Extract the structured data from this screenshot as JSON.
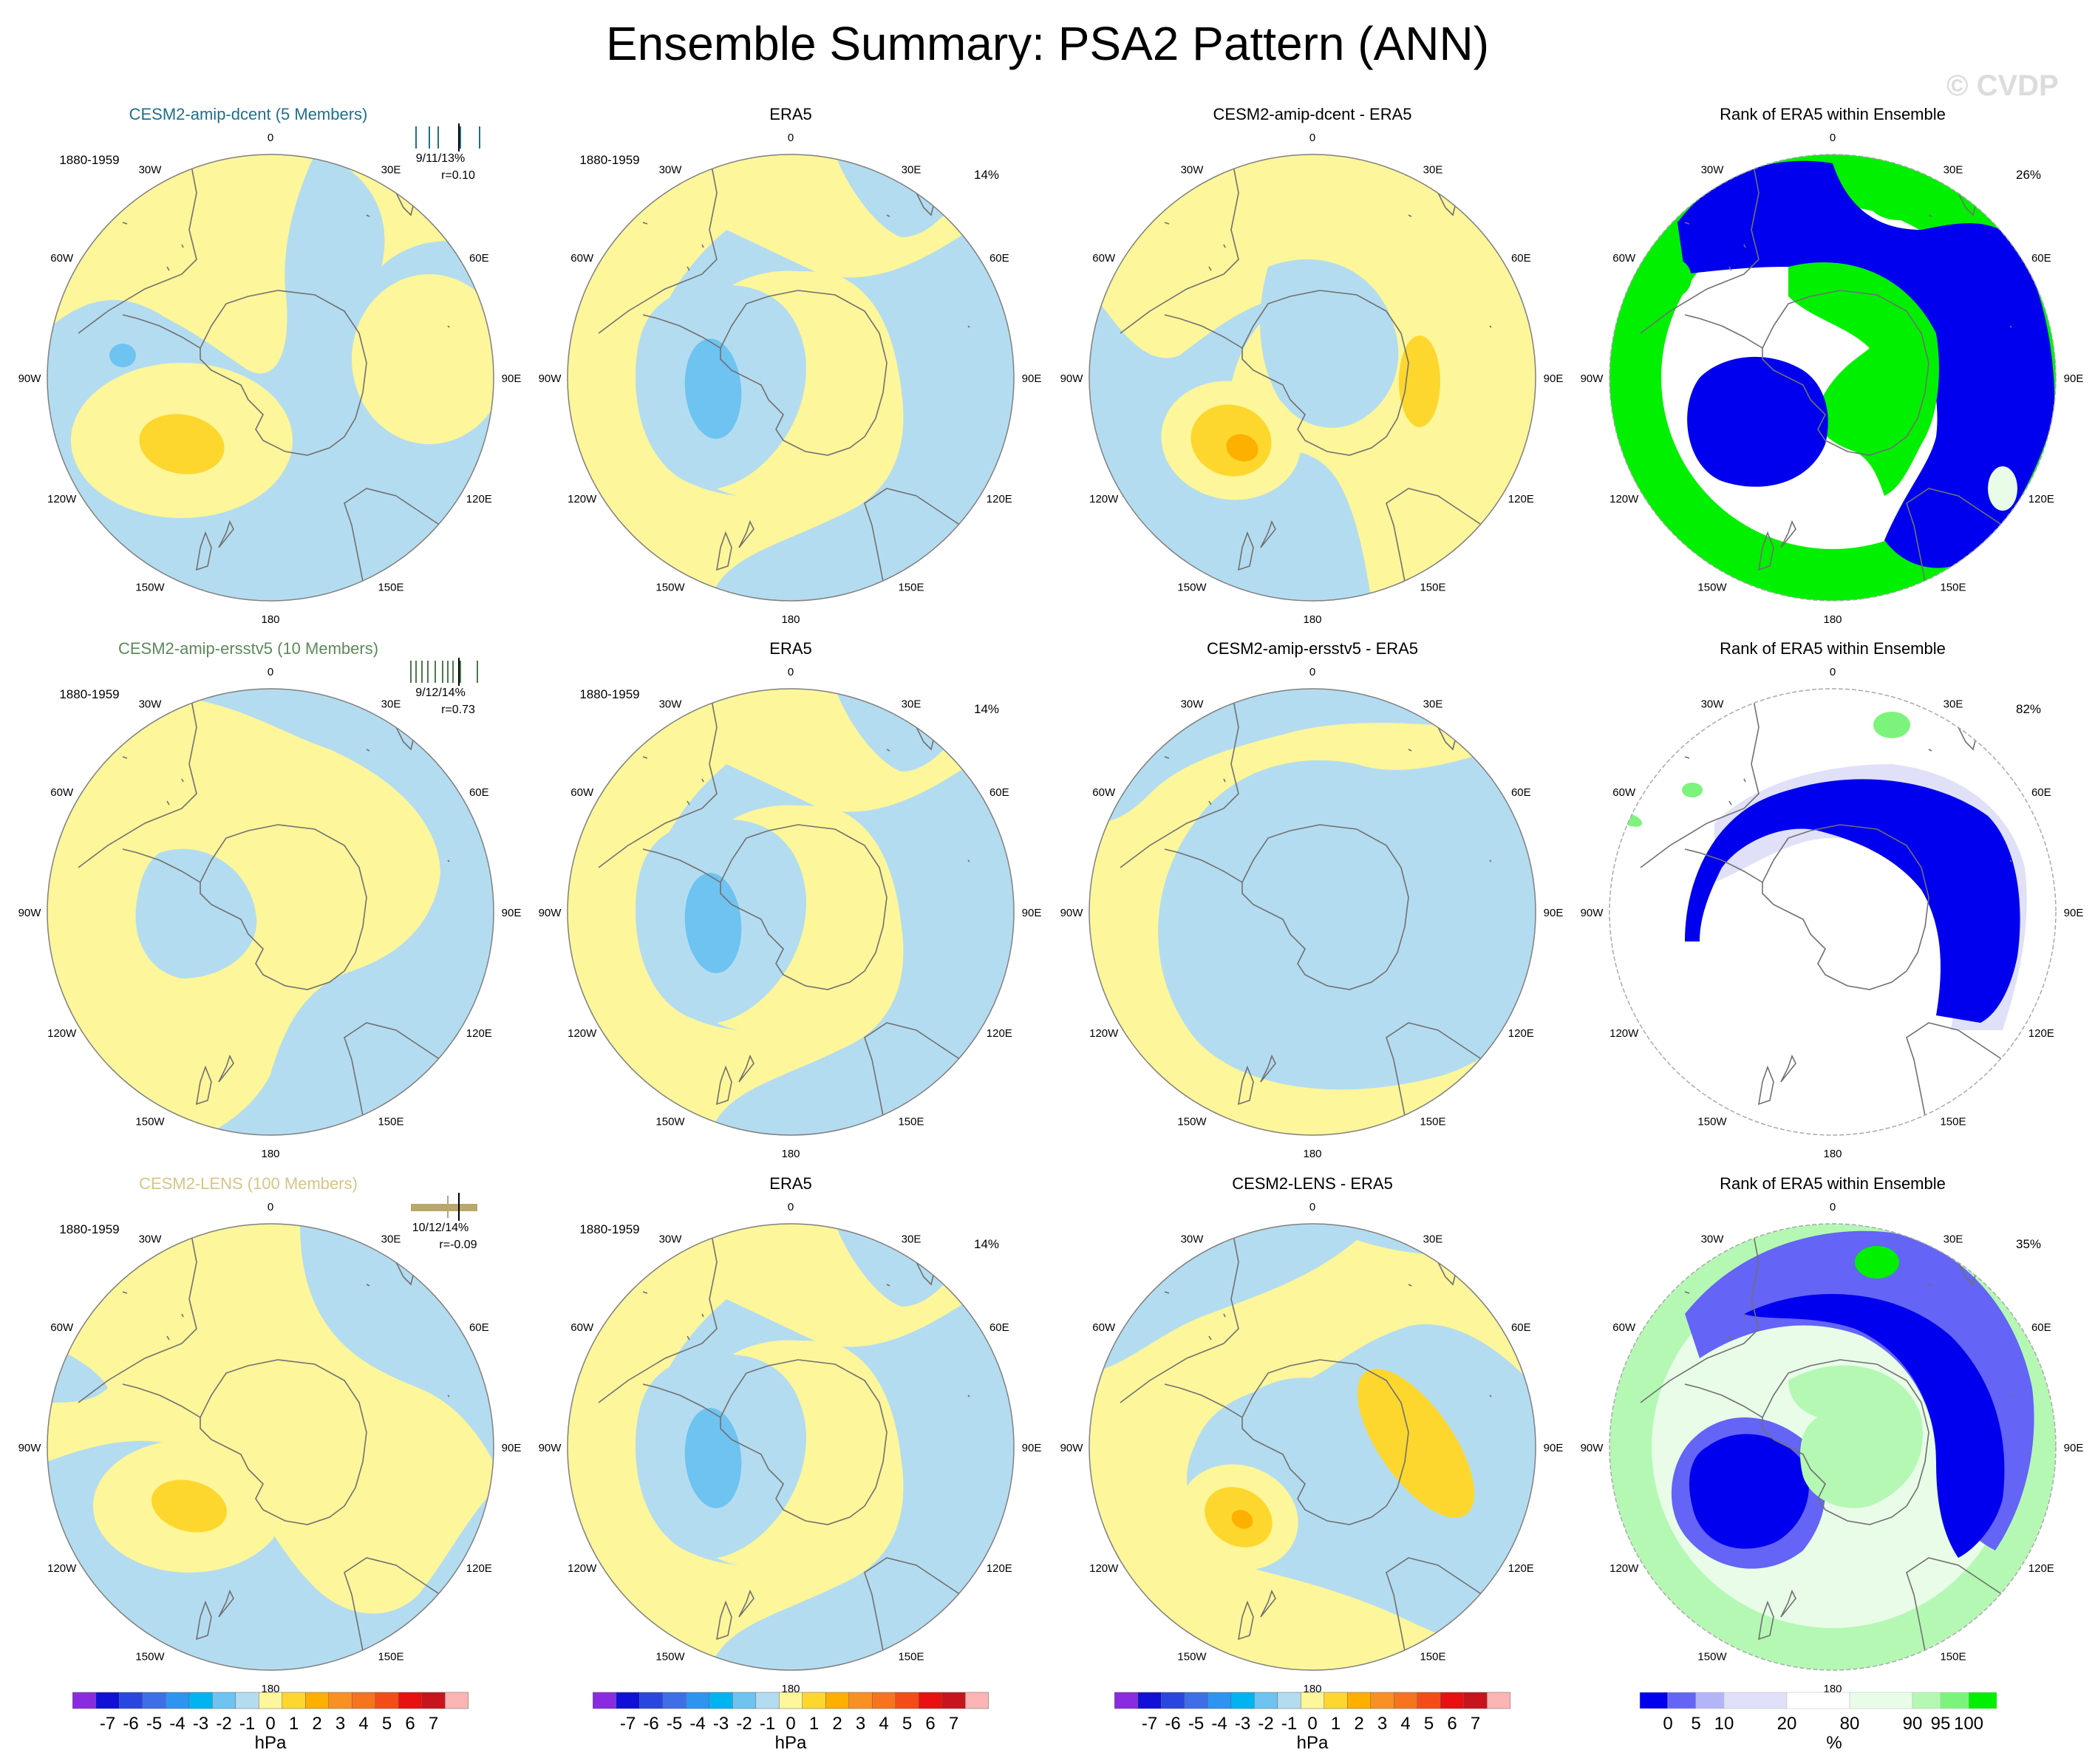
{
  "main_title": "Ensemble Summary: PSA2 Pattern (ANN)",
  "watermark": "© CVDP",
  "lon_labels": [
    "0",
    "30E",
    "60E",
    "90E",
    "120E",
    "150E",
    "180",
    "150W",
    "120W",
    "90W",
    "60W",
    "30W"
  ],
  "colors": {
    "land_line": "#707070",
    "frame": "#808080",
    "pressure_scale": [
      "#8a2be2",
      "#1010d8",
      "#2946e0",
      "#3f6ee8",
      "#2e94f0",
      "#00b4f0",
      "#6ec3f0",
      "#b4dcf0",
      "#fdf69a",
      "#fdd72e",
      "#fdb000",
      "#f99022",
      "#f7731e",
      "#f44c18",
      "#e81010",
      "#c8141c",
      "#fcb4b4"
    ],
    "rank_scale": [
      "#0000ee",
      "#6464f6",
      "#b4b4f8",
      "#e0e0f8",
      "#ffffff",
      "#e8fce8",
      "#b4f8b4",
      "#7cf47c",
      "#00f000"
    ]
  },
  "chart_data": [
    {
      "row": 1,
      "type": "heatmap",
      "kind": "model",
      "title": "CESM2-amip-dcent (5 Members)",
      "title_color": "#1f6f8b",
      "period": "1880-1959",
      "pct_label": "9/11/13%",
      "r_label": "r=0.10",
      "spread_color": "#1f6f8b",
      "spread_style": "ticks",
      "ticks": [
        0.12,
        0.3,
        0.42,
        0.72,
        0.98
      ],
      "center": [
        -50,
        15
      ],
      "units": "hPa"
    },
    {
      "row": 1,
      "type": "heatmap",
      "kind": "obs",
      "title": "ERA5",
      "period": "1880-1959",
      "pct_label": "14%",
      "units": "hPa"
    },
    {
      "row": 1,
      "type": "heatmap",
      "kind": "diff",
      "title": "CESM2-amip-dcent - ERA5",
      "units": "hPa"
    },
    {
      "row": 1,
      "type": "heatmap",
      "kind": "rank",
      "title": "Rank of ERA5 within Ensemble",
      "pct_label": "26%",
      "units": "%"
    },
    {
      "row": 2,
      "type": "heatmap",
      "kind": "model",
      "title": "CESM2-amip-ersstv5 (10 Members)",
      "title_color": "#5b8a5b",
      "period": "1880-1959",
      "pct_label": "9/12/14%",
      "r_label": "r=0.73",
      "spread_color": "#4a7a4a",
      "spread_style": "ticks",
      "ticks": [
        0.05,
        0.12,
        0.2,
        0.28,
        0.38,
        0.48,
        0.55,
        0.62,
        0.72,
        0.95
      ],
      "center": [
        -8,
        -12
      ],
      "units": "hPa"
    },
    {
      "row": 2,
      "type": "heatmap",
      "kind": "obs",
      "title": "ERA5",
      "period": "1880-1959",
      "pct_label": "14%",
      "units": "hPa"
    },
    {
      "row": 2,
      "type": "heatmap",
      "kind": "diff",
      "title": "CESM2-amip-ersstv5 - ERA5",
      "units": "hPa"
    },
    {
      "row": 2,
      "type": "heatmap",
      "kind": "rank",
      "title": "Rank of ERA5 within Ensemble",
      "pct_label": "82%",
      "units": "%"
    },
    {
      "row": 3,
      "type": "heatmap",
      "kind": "model",
      "title": "CESM2-LENS (100 Members)",
      "title_color": "#d8c488",
      "period": "1880-1959",
      "pct_label": "10/12/14%",
      "r_label": "r=-0.09",
      "spread_color": "#b8a86a",
      "spread_style": "box",
      "ticks": [
        0.55
      ],
      "center": [
        -50,
        15
      ],
      "units": "hPa"
    },
    {
      "row": 3,
      "type": "heatmap",
      "kind": "obs",
      "title": "ERA5",
      "period": "1880-1959",
      "pct_label": "14%",
      "units": "hPa"
    },
    {
      "row": 3,
      "type": "heatmap",
      "kind": "diff",
      "title": "CESM2-LENS - ERA5",
      "units": "hPa"
    },
    {
      "row": 3,
      "type": "heatmap",
      "kind": "rank",
      "title": "Rank of ERA5 within Ensemble",
      "pct_label": "35%",
      "units": "%"
    }
  ],
  "colorbars": [
    {
      "labels": [
        "-7",
        "-6",
        "-5",
        "-4",
        "-3",
        "-2",
        "-1",
        "0",
        "1",
        "2",
        "3",
        "4",
        "5",
        "6",
        "7"
      ],
      "units": "hPa",
      "scale": "pressure"
    },
    {
      "labels": [
        "-7",
        "-6",
        "-5",
        "-4",
        "-3",
        "-2",
        "-1",
        "0",
        "1",
        "2",
        "3",
        "4",
        "5",
        "6",
        "7"
      ],
      "units": "hPa",
      "scale": "pressure"
    },
    {
      "labels": [
        "-7",
        "-6",
        "-5",
        "-4",
        "-3",
        "-2",
        "-1",
        "0",
        "1",
        "2",
        "3",
        "4",
        "5",
        "6",
        "7"
      ],
      "units": "hPa",
      "scale": "pressure"
    },
    {
      "labels": [
        "0",
        "5",
        "10",
        "20",
        "80",
        "90",
        "95",
        "100"
      ],
      "units": "%",
      "scale": "rank"
    }
  ]
}
